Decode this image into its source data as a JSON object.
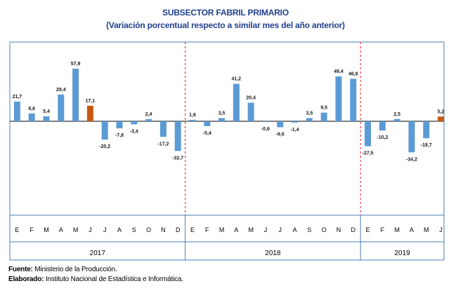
{
  "chart_data": {
    "type": "bar",
    "title": "SUBSECTOR FABRIL PRIMARIO",
    "subtitle": "(Variación porcentual respecto a similar mes del año anterior)",
    "years": [
      {
        "label": "2017",
        "months": 12
      },
      {
        "label": "2018",
        "months": 12
      },
      {
        "label": "2019",
        "months": 6
      }
    ],
    "categories": [
      "E",
      "F",
      "M",
      "A",
      "M",
      "J",
      "J",
      "A",
      "S",
      "O",
      "N",
      "D",
      "E",
      "F",
      "M",
      "A",
      "M",
      "J",
      "J",
      "A",
      "S",
      "O",
      "N",
      "D",
      "E",
      "F",
      "M",
      "A",
      "M",
      "J"
    ],
    "values": [
      21.7,
      8.6,
      5.4,
      29.4,
      57.9,
      17.1,
      -20.2,
      -7.8,
      -3.4,
      2.4,
      -17.2,
      -32.7,
      1.6,
      -5.4,
      3.5,
      41.2,
      20.4,
      -0.6,
      -6.6,
      -1.4,
      3.5,
      9.5,
      49.4,
      46.8,
      -27.5,
      -10.2,
      2.5,
      -34.2,
      -18.7,
      5.2
    ],
    "value_labels": [
      "21,7",
      "8,6",
      "5,4",
      "29,4",
      "57,9",
      "17,1",
      "-20,2",
      "-7,8",
      "-3,4",
      "2,4",
      "-17,2",
      "-32,7",
      "1,6",
      "-5,4",
      "3,5",
      "41,2",
      "20,4",
      "-0,6",
      "-6,6",
      "-1,4",
      "3,5",
      "9,5",
      "49,4",
      "46,8",
      "-27,5",
      "-10,2",
      "2,5",
      "-34,2",
      "-18,7",
      "5,2"
    ],
    "highlight_indices": [
      5,
      29
    ],
    "colors": {
      "bar": "#5b9bd5",
      "highlight": "#c55a11",
      "separator": "#e31b23",
      "axis": "#000000",
      "frame": "#4a7fb5"
    }
  },
  "footer": {
    "source_label": "Fuente:",
    "source_text": " Ministerio de la Producción.",
    "made_label": "Elaborado:",
    "made_text": " Instituto Nacional de Estadística e Informática."
  }
}
